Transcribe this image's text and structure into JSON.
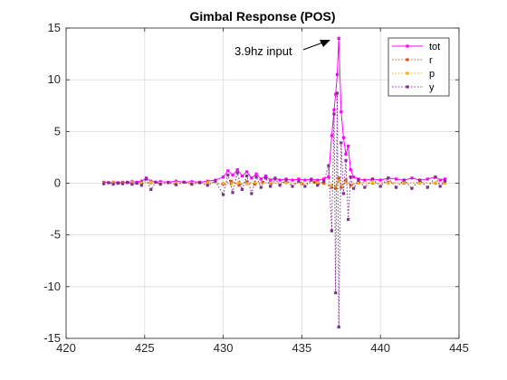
{
  "chart_data": {
    "type": "line",
    "title": "Gimbal Response (POS)",
    "xlabel": "",
    "ylabel": "",
    "xlim": [
      420,
      445
    ],
    "ylim": [
      -15,
      15
    ],
    "xticks": [
      420,
      425,
      430,
      435,
      440,
      445
    ],
    "yticks": [
      -15,
      -10,
      -5,
      0,
      5,
      10,
      15
    ],
    "grid": true,
    "legend_position": "top-right",
    "annotation": {
      "text": "3.9hz input",
      "points_to": [
        437,
        14
      ]
    },
    "series": [
      {
        "name": "tot",
        "color": "#ff00ff",
        "line_style": "solid",
        "points": [
          [
            422.4,
            0.1
          ],
          [
            422.7,
            0.05
          ],
          [
            423.0,
            0.1
          ],
          [
            423.3,
            0.05
          ],
          [
            423.6,
            0.1
          ],
          [
            423.9,
            0.05
          ],
          [
            424.2,
            0.15
          ],
          [
            424.5,
            0.1
          ],
          [
            424.8,
            0.2
          ],
          [
            425.1,
            0.5
          ],
          [
            425.4,
            0.2
          ],
          [
            425.7,
            0.1
          ],
          [
            426.0,
            0.15
          ],
          [
            426.5,
            0.1
          ],
          [
            427.0,
            0.2
          ],
          [
            427.5,
            0.1
          ],
          [
            428.0,
            0.15
          ],
          [
            428.5,
            0.1
          ],
          [
            429.0,
            0.2
          ],
          [
            429.5,
            0.3
          ],
          [
            430.0,
            0.6
          ],
          [
            430.3,
            1.2
          ],
          [
            430.6,
            0.8
          ],
          [
            430.9,
            1.3
          ],
          [
            431.2,
            0.7
          ],
          [
            431.5,
            1.1
          ],
          [
            431.8,
            0.5
          ],
          [
            432.1,
            0.9
          ],
          [
            432.4,
            0.4
          ],
          [
            432.7,
            0.7
          ],
          [
            433.0,
            0.3
          ],
          [
            433.3,
            0.5
          ],
          [
            433.6,
            0.3
          ],
          [
            434.0,
            0.4
          ],
          [
            434.4,
            0.3
          ],
          [
            434.8,
            0.4
          ],
          [
            435.2,
            0.3
          ],
          [
            435.6,
            0.4
          ],
          [
            436.0,
            0.3
          ],
          [
            436.4,
            0.4
          ],
          [
            436.7,
            0.6
          ],
          [
            436.9,
            4.6
          ],
          [
            437.05,
            7.1
          ],
          [
            437.15,
            8.6
          ],
          [
            437.25,
            10.5
          ],
          [
            437.35,
            14.0
          ],
          [
            437.5,
            6.9
          ],
          [
            437.65,
            4.4
          ],
          [
            437.8,
            2.8
          ],
          [
            437.95,
            3.6
          ],
          [
            438.1,
            1.3
          ],
          [
            438.3,
            0.6
          ],
          [
            438.6,
            0.4
          ],
          [
            439.0,
            0.3
          ],
          [
            439.5,
            0.4
          ],
          [
            440.0,
            0.3
          ],
          [
            440.5,
            0.5
          ],
          [
            441.0,
            0.4
          ],
          [
            441.5,
            0.3
          ],
          [
            442.0,
            0.5
          ],
          [
            442.5,
            0.3
          ],
          [
            443.0,
            0.4
          ],
          [
            443.5,
            0.6
          ],
          [
            443.8,
            0.3
          ],
          [
            444.1,
            0.4
          ]
        ]
      },
      {
        "name": "r",
        "color": "#d95319",
        "line_style": "dotted",
        "points": [
          [
            422.4,
            0.05
          ],
          [
            423.0,
            0.0
          ],
          [
            423.6,
            0.05
          ],
          [
            424.2,
            0.0
          ],
          [
            424.8,
            0.1
          ],
          [
            425.4,
            0.05
          ],
          [
            426.0,
            0.0
          ],
          [
            427.0,
            0.05
          ],
          [
            428.0,
            0.0
          ],
          [
            429.0,
            0.1
          ],
          [
            430.0,
            -0.1
          ],
          [
            430.5,
            0.2
          ],
          [
            431.0,
            -0.2
          ],
          [
            431.5,
            0.15
          ],
          [
            432.0,
            -0.1
          ],
          [
            432.5,
            0.1
          ],
          [
            433.0,
            0.0
          ],
          [
            434.0,
            0.1
          ],
          [
            435.0,
            -0.05
          ],
          [
            435.8,
            0.1
          ],
          [
            436.4,
            0.0
          ],
          [
            436.9,
            -0.4
          ],
          [
            437.15,
            -0.5
          ],
          [
            437.35,
            0.5
          ],
          [
            437.5,
            -0.4
          ],
          [
            437.8,
            0.3
          ],
          [
            438.1,
            -0.2
          ],
          [
            438.6,
            0.1
          ],
          [
            439.5,
            0.0
          ],
          [
            440.5,
            0.1
          ],
          [
            441.5,
            0.0
          ],
          [
            442.5,
            0.05
          ],
          [
            443.5,
            0.0
          ],
          [
            444.1,
            0.05
          ]
        ]
      },
      {
        "name": "p",
        "color": "#edb120",
        "line_style": "dotted",
        "points": [
          [
            422.4,
            0.0
          ],
          [
            423.0,
            0.05
          ],
          [
            423.6,
            0.0
          ],
          [
            424.2,
            0.05
          ],
          [
            424.8,
            0.0
          ],
          [
            425.4,
            0.1
          ],
          [
            426.0,
            0.0
          ],
          [
            427.0,
            0.05
          ],
          [
            428.0,
            0.0
          ],
          [
            429.0,
            0.05
          ],
          [
            430.0,
            0.0
          ],
          [
            430.5,
            -0.1
          ],
          [
            431.0,
            0.1
          ],
          [
            431.5,
            -0.05
          ],
          [
            432.0,
            0.05
          ],
          [
            433.0,
            0.0
          ],
          [
            434.0,
            0.05
          ],
          [
            435.0,
            0.0
          ],
          [
            436.0,
            0.05
          ],
          [
            436.9,
            -0.2
          ],
          [
            437.15,
            -0.3
          ],
          [
            437.35,
            0.2
          ],
          [
            437.5,
            -0.2
          ],
          [
            437.8,
            0.1
          ],
          [
            438.6,
            0.0
          ],
          [
            439.5,
            0.05
          ],
          [
            440.5,
            0.0
          ],
          [
            441.5,
            0.05
          ],
          [
            442.5,
            0.0
          ],
          [
            443.5,
            0.05
          ],
          [
            444.1,
            0.0
          ]
        ]
      },
      {
        "name": "y",
        "color": "#7e2f8e",
        "line_style": "dotted",
        "points": [
          [
            422.4,
            -0.05
          ],
          [
            422.7,
            0.05
          ],
          [
            423.0,
            -0.1
          ],
          [
            423.3,
            0.0
          ],
          [
            423.6,
            -0.05
          ],
          [
            423.9,
            0.1
          ],
          [
            424.2,
            -0.1
          ],
          [
            424.5,
            0.0
          ],
          [
            424.8,
            -0.2
          ],
          [
            425.1,
            0.4
          ],
          [
            425.4,
            -0.6
          ],
          [
            425.7,
            0.1
          ],
          [
            426.0,
            -0.1
          ],
          [
            426.5,
            0.05
          ],
          [
            427.0,
            -0.15
          ],
          [
            427.5,
            0.1
          ],
          [
            428.0,
            -0.1
          ],
          [
            428.5,
            0.05
          ],
          [
            429.0,
            -0.2
          ],
          [
            429.5,
            0.2
          ],
          [
            430.0,
            -1.1
          ],
          [
            430.3,
            0.8
          ],
          [
            430.6,
            -0.9
          ],
          [
            430.9,
            1.0
          ],
          [
            431.2,
            -0.6
          ],
          [
            431.5,
            0.7
          ],
          [
            431.8,
            -1.0
          ],
          [
            432.1,
            0.6
          ],
          [
            432.4,
            -0.4
          ],
          [
            432.7,
            0.5
          ],
          [
            433.0,
            -0.3
          ],
          [
            433.3,
            0.4
          ],
          [
            433.6,
            -0.2
          ],
          [
            434.0,
            0.3
          ],
          [
            434.4,
            -0.3
          ],
          [
            434.8,
            0.2
          ],
          [
            435.2,
            -0.3
          ],
          [
            435.6,
            0.3
          ],
          [
            436.0,
            -0.2
          ],
          [
            436.4,
            0.2
          ],
          [
            436.7,
            1.7
          ],
          [
            436.9,
            -4.6
          ],
          [
            437.05,
            6.7
          ],
          [
            437.15,
            -10.6
          ],
          [
            437.25,
            8.7
          ],
          [
            437.35,
            -13.9
          ],
          [
            437.5,
            3.9
          ],
          [
            437.65,
            -1.0
          ],
          [
            437.8,
            2.2
          ],
          [
            437.95,
            -3.5
          ],
          [
            438.1,
            0.6
          ],
          [
            438.3,
            -0.5
          ],
          [
            438.6,
            0.3
          ],
          [
            439.0,
            -0.4
          ],
          [
            439.5,
            0.4
          ],
          [
            440.0,
            -0.3
          ],
          [
            440.5,
            0.5
          ],
          [
            441.0,
            -0.4
          ],
          [
            441.5,
            0.3
          ],
          [
            442.0,
            -0.5
          ],
          [
            442.5,
            0.3
          ],
          [
            443.0,
            -0.4
          ],
          [
            443.5,
            0.6
          ],
          [
            443.8,
            -0.3
          ],
          [
            444.1,
            0.2
          ]
        ]
      }
    ]
  }
}
